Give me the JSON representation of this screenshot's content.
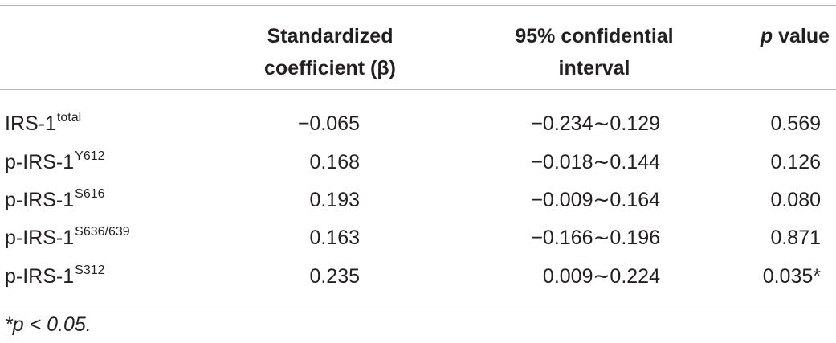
{
  "table": {
    "headers": {
      "col0": "",
      "coef_line1": "Standardized",
      "coef_line2": "coefficient (β)",
      "ci_line1": "95% confidential",
      "ci_line2": "interval",
      "p_italic": "p",
      "p_rest": " value"
    },
    "rows": [
      {
        "base": "IRS-1",
        "sup": "total",
        "coef": "−0.065",
        "ci": "−0.234∼0.129",
        "p": "0.569"
      },
      {
        "base": "p-IRS-1",
        "sup": "Y612",
        "coef": "0.168",
        "ci": "−0.018∼0.144",
        "p": "0.126"
      },
      {
        "base": "p-IRS-1",
        "sup": "S616",
        "coef": "0.193",
        "ci": "−0.009∼0.164",
        "p": "0.080"
      },
      {
        "base": "p-IRS-1",
        "sup": "S636/639",
        "coef": "0.163",
        "ci": "−0.166∼0.196",
        "p": "0.871"
      },
      {
        "base": "p-IRS-1",
        "sup": "S312",
        "coef": "0.235",
        "ci": "0.009∼0.224",
        "p": "0.035*"
      }
    ]
  },
  "footnote": "*p < 0.05."
}
